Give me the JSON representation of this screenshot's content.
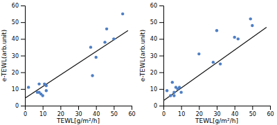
{
  "chart_data": [
    {
      "type": "scatter",
      "xlabel": "TEWL[g/m²/h]",
      "ylabel": "e-TEWL(arb.unit)",
      "xlim": [
        0,
        60
      ],
      "ylim": [
        0,
        60
      ],
      "xticks": [
        0,
        10,
        20,
        30,
        40,
        50,
        60
      ],
      "yticks": [
        0,
        10,
        20,
        30,
        40,
        50,
        60
      ],
      "grid": false,
      "series": [
        {
          "type": "scatter",
          "color": "#4e7fc4",
          "x": [
            2,
            7,
            8,
            8,
            9,
            10,
            11,
            12,
            12,
            37,
            38,
            40,
            45,
            46,
            50,
            55
          ],
          "values": [
            11,
            8,
            8,
            13,
            7,
            6,
            13,
            12,
            9,
            35,
            18,
            29,
            38,
            46,
            40,
            55
          ]
        },
        {
          "type": "line",
          "color": "#111111",
          "x": [
            0,
            58
          ],
          "values": [
            4.5,
            45
          ]
        }
      ]
    },
    {
      "type": "scatter",
      "xlabel": "TEWL[g/m²/h]",
      "ylabel": "e-TEWL(arb.unit)",
      "xlim": [
        0,
        60
      ],
      "ylim": [
        0,
        60
      ],
      "xticks": [
        0,
        10,
        20,
        30,
        40,
        50,
        60
      ],
      "yticks": [
        0,
        10,
        20,
        30,
        40,
        50,
        60
      ],
      "grid": false,
      "series": [
        {
          "type": "scatter",
          "color": "#4e7fc4",
          "x": [
            2,
            4,
            5,
            6,
            6,
            7,
            8,
            9,
            10,
            20,
            28,
            30,
            32,
            40,
            42,
            49,
            50
          ],
          "values": [
            9,
            6,
            14,
            6,
            8,
            11,
            10,
            11,
            8,
            31,
            26,
            45,
            25,
            41,
            40,
            52,
            48
          ]
        },
        {
          "type": "line",
          "color": "#111111",
          "x": [
            0,
            58
          ],
          "values": [
            3,
            47
          ]
        }
      ]
    }
  ]
}
